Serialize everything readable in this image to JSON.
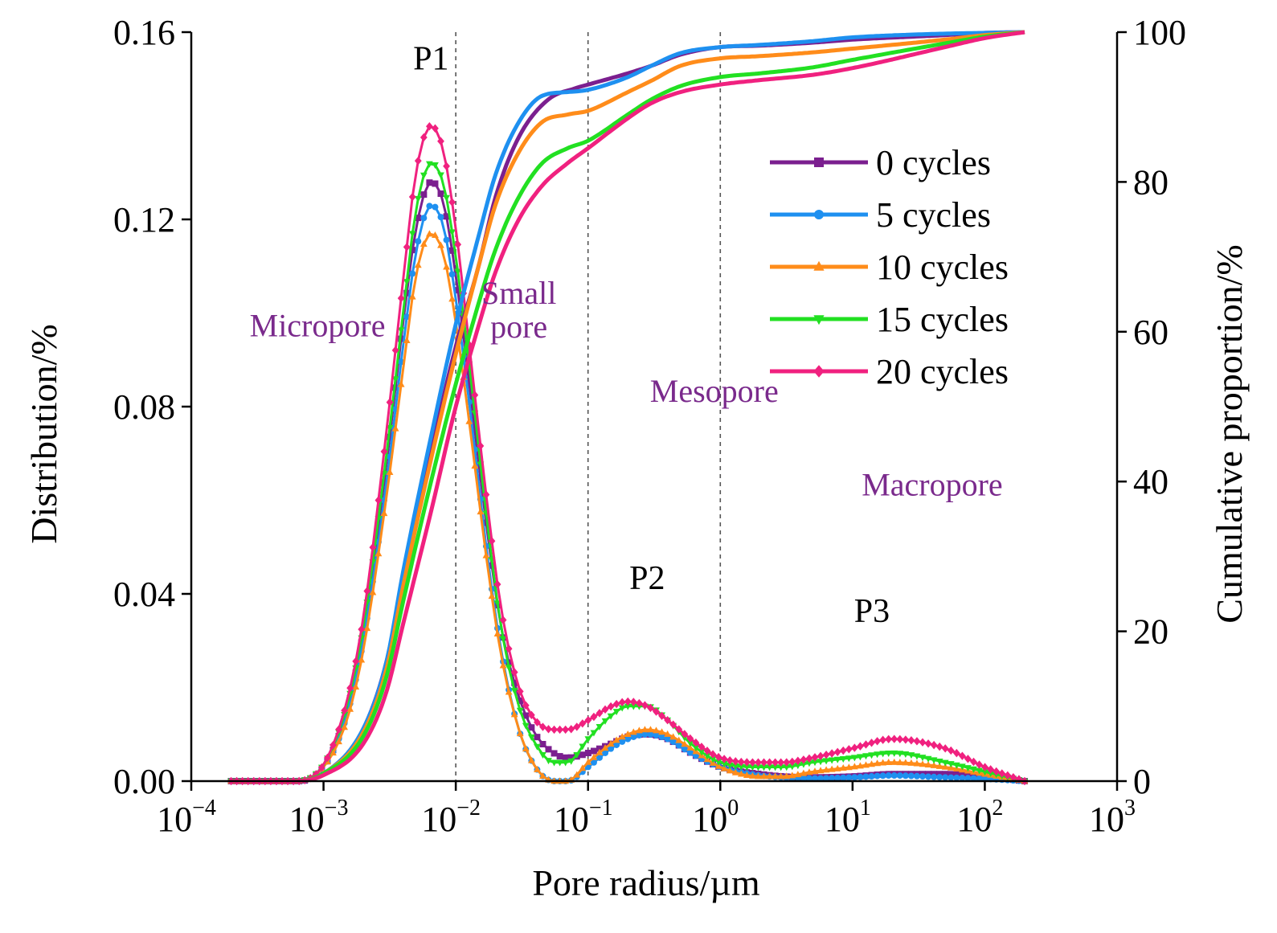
{
  "chart_data": {
    "type": "line",
    "title": "",
    "xlabel": "Pore radius/µm",
    "ylabel_left": "Distribution/%",
    "ylabel_right": "Cumulative proportion/%",
    "x_scale": "log",
    "xlim_exp": [
      -4,
      3
    ],
    "x_tick_exponents": [
      -4,
      -3,
      -2,
      -1,
      0,
      1,
      2,
      3
    ],
    "x_tick_base": "10",
    "ylim_left": [
      0,
      0.16
    ],
    "y_ticks_left": [
      "0.00",
      "0.04",
      "0.08",
      "0.12",
      "0.16"
    ],
    "ylim_right": [
      0,
      100
    ],
    "y_ticks_right": [
      "0",
      "20",
      "40",
      "60",
      "80",
      "100"
    ],
    "grid": false,
    "legend_position": "upper-right",
    "dashed_boundaries_um": [
      0.01,
      0.1,
      1
    ],
    "peak_labels": [
      {
        "text": "P1",
        "x": 0.0065,
        "y": 0.152
      },
      {
        "text": "P2",
        "x": 0.28,
        "y": 0.041
      },
      {
        "text": "P3",
        "x": 14,
        "y": 0.034
      }
    ],
    "region_labels": [
      {
        "lines": [
          "Micropore"
        ],
        "x": 0.0009,
        "y": 0.095
      },
      {
        "lines": [
          "Small",
          "pore"
        ],
        "x": 0.03,
        "y": 0.102
      },
      {
        "lines": [
          "Mesopore"
        ],
        "x": 0.9,
        "y": 0.081
      },
      {
        "lines": [
          "Macropore"
        ],
        "x": 40,
        "y": 0.061
      }
    ],
    "series": [
      {
        "name": "0 cycles",
        "color": "#7B1F8F",
        "marker": "square",
        "distribution": {
          "x": [
            0.0002,
            0.0006,
            0.001,
            0.0015,
            0.002,
            0.003,
            0.004,
            0.005,
            0.0065,
            0.008,
            0.01,
            0.013,
            0.017,
            0.022,
            0.03,
            0.04,
            0.055,
            0.07,
            0.1,
            0.15,
            0.2,
            0.28,
            0.4,
            0.6,
            1,
            2,
            3,
            5,
            10,
            20,
            50,
            100,
            200
          ],
          "y": [
            0,
            0,
            0.003,
            0.015,
            0.032,
            0.068,
            0.098,
            0.118,
            0.128,
            0.124,
            0.108,
            0.082,
            0.055,
            0.033,
            0.018,
            0.01,
            0.006,
            0.005,
            0.006,
            0.008,
            0.0095,
            0.01,
            0.009,
            0.006,
            0.003,
            0.0015,
            0.001,
            0.0008,
            0.001,
            0.0015,
            0.0015,
            0.001,
            0
          ]
        },
        "cumulative": {
          "x": [
            0.0002,
            0.0006,
            0.001,
            0.002,
            0.003,
            0.004,
            0.0065,
            0.01,
            0.015,
            0.02,
            0.03,
            0.05,
            0.08,
            0.1,
            0.2,
            0.3,
            0.5,
            1,
            2,
            5,
            10,
            50,
            100,
            200
          ],
          "y": [
            0,
            0,
            1,
            7,
            16,
            27,
            44,
            58,
            69,
            78,
            86,
            91,
            92.5,
            93,
            94.5,
            95.5,
            97,
            98,
            98.2,
            98.6,
            99,
            99.6,
            99.9,
            100
          ]
        }
      },
      {
        "name": "5 cycles",
        "color": "#1E90F0",
        "marker": "circle",
        "distribution": {
          "x": [
            0.0002,
            0.0006,
            0.001,
            0.0015,
            0.002,
            0.003,
            0.004,
            0.005,
            0.0065,
            0.008,
            0.01,
            0.013,
            0.017,
            0.022,
            0.03,
            0.04,
            0.055,
            0.07,
            0.1,
            0.15,
            0.2,
            0.28,
            0.4,
            0.6,
            1,
            2,
            3,
            5,
            10,
            20,
            50,
            100,
            200
          ],
          "y": [
            0,
            0,
            0.003,
            0.014,
            0.03,
            0.064,
            0.093,
            0.113,
            0.123,
            0.119,
            0.103,
            0.078,
            0.05,
            0.028,
            0.011,
            0.003,
            0,
            0,
            0.003,
            0.007,
            0.009,
            0.01,
            0.009,
            0.006,
            0.003,
            0.0012,
            0.0008,
            0.0006,
            0.0008,
            0.0012,
            0.0008,
            0.0005,
            0
          ]
        },
        "cumulative": {
          "x": [
            0.0002,
            0.0006,
            0.001,
            0.002,
            0.003,
            0.004,
            0.0065,
            0.01,
            0.015,
            0.02,
            0.03,
            0.045,
            0.07,
            0.1,
            0.2,
            0.3,
            0.5,
            1,
            2,
            5,
            10,
            50,
            100,
            200
          ],
          "y": [
            0,
            0,
            1,
            7,
            16,
            28,
            46,
            61,
            73,
            81,
            88,
            91.5,
            92,
            92.3,
            94,
            95.5,
            97.2,
            98,
            98.3,
            98.8,
            99.3,
            99.8,
            99.9,
            100
          ]
        }
      },
      {
        "name": "10 cycles",
        "color": "#FF8C1A",
        "marker": "triangle-up",
        "distribution": {
          "x": [
            0.0002,
            0.0006,
            0.001,
            0.0015,
            0.002,
            0.003,
            0.004,
            0.005,
            0.0065,
            0.008,
            0.01,
            0.013,
            0.017,
            0.022,
            0.03,
            0.04,
            0.055,
            0.07,
            0.1,
            0.15,
            0.2,
            0.28,
            0.4,
            0.6,
            1,
            2,
            3,
            5,
            10,
            20,
            50,
            100,
            200
          ],
          "y": [
            0,
            0,
            0.003,
            0.013,
            0.028,
            0.061,
            0.088,
            0.108,
            0.117,
            0.113,
            0.098,
            0.074,
            0.048,
            0.027,
            0.011,
            0.003,
            0,
            0,
            0.004,
            0.008,
            0.01,
            0.011,
            0.01,
            0.007,
            0.003,
            0.001,
            0.001,
            0.002,
            0.003,
            0.004,
            0.003,
            0.0015,
            0
          ]
        },
        "cumulative": {
          "x": [
            0.0002,
            0.0006,
            0.001,
            0.002,
            0.003,
            0.004,
            0.0065,
            0.01,
            0.015,
            0.02,
            0.03,
            0.045,
            0.07,
            0.1,
            0.2,
            0.3,
            0.5,
            1,
            2,
            5,
            10,
            50,
            100,
            200
          ],
          "y": [
            0,
            0,
            1,
            6.5,
            15,
            26,
            43,
            57,
            69,
            77,
            84,
            88,
            89,
            89.5,
            92,
            93.5,
            95.5,
            96.5,
            96.8,
            97.3,
            97.8,
            99,
            99.6,
            100
          ]
        }
      },
      {
        "name": "15 cycles",
        "color": "#22E022",
        "marker": "triangle-down",
        "distribution": {
          "x": [
            0.0002,
            0.0006,
            0.001,
            0.0015,
            0.002,
            0.003,
            0.004,
            0.005,
            0.0065,
            0.008,
            0.01,
            0.013,
            0.017,
            0.022,
            0.03,
            0.04,
            0.055,
            0.07,
            0.1,
            0.15,
            0.2,
            0.28,
            0.4,
            0.6,
            1,
            2,
            3,
            5,
            10,
            20,
            50,
            100,
            200
          ],
          "y": [
            0,
            0,
            0.0035,
            0.016,
            0.033,
            0.07,
            0.1,
            0.122,
            0.132,
            0.128,
            0.112,
            0.086,
            0.057,
            0.033,
            0.016,
            0.008,
            0.004,
            0.004,
            0.009,
            0.014,
            0.016,
            0.016,
            0.013,
            0.008,
            0.004,
            0.003,
            0.003,
            0.004,
            0.005,
            0.006,
            0.004,
            0.002,
            0
          ]
        },
        "cumulative": {
          "x": [
            0.0002,
            0.0006,
            0.001,
            0.002,
            0.003,
            0.004,
            0.0065,
            0.01,
            0.015,
            0.02,
            0.03,
            0.045,
            0.07,
            0.1,
            0.2,
            0.3,
            0.5,
            1,
            2,
            5,
            10,
            50,
            100,
            200
          ],
          "y": [
            0,
            0,
            1,
            6,
            14,
            24,
            40,
            53,
            64,
            71,
            78,
            82.5,
            84.5,
            85.5,
            89,
            91,
            92.8,
            94,
            94.5,
            95.3,
            96.3,
            98.5,
            99.4,
            100
          ]
        }
      },
      {
        "name": "20 cycles",
        "color": "#F0217F",
        "marker": "diamond",
        "distribution": {
          "x": [
            0.0002,
            0.0006,
            0.001,
            0.0015,
            0.002,
            0.003,
            0.004,
            0.005,
            0.0065,
            0.008,
            0.01,
            0.013,
            0.017,
            0.022,
            0.03,
            0.04,
            0.055,
            0.07,
            0.1,
            0.15,
            0.2,
            0.28,
            0.4,
            0.6,
            1,
            2,
            3,
            5,
            10,
            20,
            50,
            100,
            200
          ],
          "y": [
            0,
            0,
            0.0035,
            0.017,
            0.035,
            0.075,
            0.107,
            0.13,
            0.14,
            0.135,
            0.118,
            0.09,
            0.061,
            0.037,
            0.02,
            0.013,
            0.011,
            0.011,
            0.013,
            0.016,
            0.017,
            0.016,
            0.013,
            0.009,
            0.005,
            0.004,
            0.004,
            0.005,
            0.007,
            0.009,
            0.007,
            0.003,
            0
          ]
        },
        "cumulative": {
          "x": [
            0.0002,
            0.0006,
            0.001,
            0.002,
            0.003,
            0.004,
            0.0065,
            0.01,
            0.015,
            0.02,
            0.03,
            0.045,
            0.07,
            0.1,
            0.2,
            0.3,
            0.5,
            1,
            2,
            5,
            10,
            50,
            100,
            200
          ],
          "y": [
            0,
            0,
            0.8,
            5,
            12,
            21,
            36,
            50,
            61,
            68,
            75,
            79.5,
            82.5,
            84.5,
            88.5,
            90.5,
            92,
            93,
            93.6,
            94.3,
            95.2,
            98,
            99.2,
            100
          ]
        }
      }
    ]
  }
}
